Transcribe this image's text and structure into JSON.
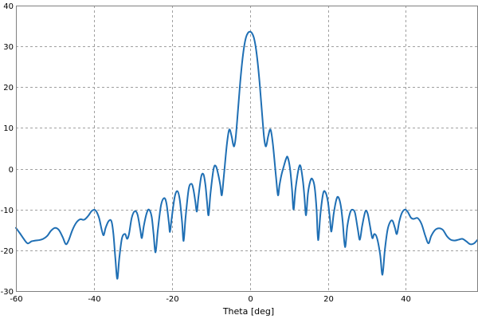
{
  "chart_data": {
    "type": "line",
    "title": "",
    "xlabel": "Theta [deg]",
    "ylabel": "",
    "xlim": [
      -60,
      58.5
    ],
    "ylim": [
      -30,
      40
    ],
    "xticks": [
      -60,
      -40,
      -20,
      0,
      20,
      40
    ],
    "yticks": [
      -30,
      -20,
      -10,
      0,
      10,
      20,
      30,
      40
    ],
    "grid": true,
    "grid_style": "dashed",
    "line_color": "#1f6fb4",
    "series": [
      {
        "name": "",
        "points": [
          [
            -60.0,
            -14.5
          ],
          [
            -59.0,
            -15.8
          ],
          [
            -58.0,
            -17.2
          ],
          [
            -57.0,
            -18.3
          ],
          [
            -56.0,
            -17.8
          ],
          [
            -55.0,
            -17.6
          ],
          [
            -54.0,
            -17.5
          ],
          [
            -53.0,
            -17.2
          ],
          [
            -52.0,
            -16.5
          ],
          [
            -51.0,
            -15.2
          ],
          [
            -50.0,
            -14.5
          ],
          [
            -49.0,
            -15.0
          ],
          [
            -48.0,
            -16.8
          ],
          [
            -47.2,
            -18.5
          ],
          [
            -46.5,
            -17.6
          ],
          [
            -45.5,
            -15.0
          ],
          [
            -44.5,
            -13.2
          ],
          [
            -43.5,
            -12.4
          ],
          [
            -42.5,
            -12.5
          ],
          [
            -41.5,
            -11.6
          ],
          [
            -40.5,
            -10.3
          ],
          [
            -39.6,
            -10.2
          ],
          [
            -38.7,
            -12.0
          ],
          [
            -38.0,
            -15.0
          ],
          [
            -37.5,
            -16.3
          ],
          [
            -37.0,
            -14.5
          ],
          [
            -36.2,
            -12.8
          ],
          [
            -35.5,
            -12.9
          ],
          [
            -35.0,
            -16.0
          ],
          [
            -34.5,
            -22.0
          ],
          [
            -34.0,
            -27.0
          ],
          [
            -33.5,
            -22.0
          ],
          [
            -32.8,
            -17.0
          ],
          [
            -32.0,
            -16.0
          ],
          [
            -31.5,
            -17.2
          ],
          [
            -31.0,
            -16.0
          ],
          [
            -30.3,
            -12.0
          ],
          [
            -29.5,
            -10.4
          ],
          [
            -28.8,
            -11.3
          ],
          [
            -28.1,
            -15.0
          ],
          [
            -27.7,
            -17.0
          ],
          [
            -27.2,
            -14.0
          ],
          [
            -26.5,
            -11.0
          ],
          [
            -25.9,
            -10.0
          ],
          [
            -25.2,
            -11.7
          ],
          [
            -24.7,
            -16.0
          ],
          [
            -24.2,
            -20.5
          ],
          [
            -23.6,
            -15.0
          ],
          [
            -22.8,
            -9.0
          ],
          [
            -22.0,
            -7.2
          ],
          [
            -21.4,
            -8.5
          ],
          [
            -20.8,
            -13.0
          ],
          [
            -20.5,
            -15.5
          ],
          [
            -20.1,
            -12.5
          ],
          [
            -19.3,
            -7.0
          ],
          [
            -18.6,
            -5.5
          ],
          [
            -18.0,
            -7.5
          ],
          [
            -17.4,
            -13.0
          ],
          [
            -17.0,
            -17.7
          ],
          [
            -16.5,
            -12.0
          ],
          [
            -15.7,
            -5.0
          ],
          [
            -15.0,
            -3.7
          ],
          [
            -14.5,
            -5.0
          ],
          [
            -14.0,
            -8.0
          ],
          [
            -13.6,
            -10.5
          ],
          [
            -13.2,
            -7.0
          ],
          [
            -12.5,
            -2.0
          ],
          [
            -11.9,
            -1.4
          ],
          [
            -11.4,
            -4.0
          ],
          [
            -11.0,
            -8.0
          ],
          [
            -10.6,
            -11.4
          ],
          [
            -10.1,
            -6.0
          ],
          [
            -9.3,
            0.0
          ],
          [
            -8.7,
            0.6
          ],
          [
            -8.1,
            -1.5
          ],
          [
            -7.6,
            -4.0
          ],
          [
            -7.2,
            -6.5
          ],
          [
            -6.7,
            -2.0
          ],
          [
            -5.9,
            6.0
          ],
          [
            -5.3,
            9.6
          ],
          [
            -4.7,
            8.0
          ],
          [
            -4.3,
            6.0
          ],
          [
            -4.0,
            5.6
          ],
          [
            -3.6,
            8.0
          ],
          [
            -3.0,
            15.0
          ],
          [
            -2.5,
            21.0
          ],
          [
            -2.0,
            26.0
          ],
          [
            -1.5,
            29.8
          ],
          [
            -1.0,
            32.2
          ],
          [
            -0.5,
            33.3
          ],
          [
            0.0,
            33.6
          ],
          [
            0.5,
            33.3
          ],
          [
            1.0,
            32.2
          ],
          [
            1.5,
            29.8
          ],
          [
            2.0,
            26.0
          ],
          [
            2.5,
            21.0
          ],
          [
            3.0,
            15.0
          ],
          [
            3.6,
            8.0
          ],
          [
            4.0,
            5.6
          ],
          [
            4.3,
            6.0
          ],
          [
            4.7,
            8.0
          ],
          [
            5.3,
            9.6
          ],
          [
            5.9,
            6.0
          ],
          [
            6.7,
            -2.0
          ],
          [
            7.2,
            -6.5
          ],
          [
            7.6,
            -4.0
          ],
          [
            8.1,
            -1.5
          ],
          [
            8.7,
            0.6
          ],
          [
            9.3,
            2.5
          ],
          [
            9.7,
            2.8
          ],
          [
            10.3,
            0.0
          ],
          [
            10.8,
            -5.0
          ],
          [
            11.2,
            -10.0
          ],
          [
            11.7,
            -5.0
          ],
          [
            12.5,
            0.0
          ],
          [
            13.0,
            0.6
          ],
          [
            13.6,
            -3.0
          ],
          [
            14.0,
            -7.0
          ],
          [
            14.4,
            -11.4
          ],
          [
            14.9,
            -6.0
          ],
          [
            15.5,
            -3.0
          ],
          [
            16.0,
            -2.5
          ],
          [
            16.6,
            -4.5
          ],
          [
            17.1,
            -10.0
          ],
          [
            17.5,
            -17.5
          ],
          [
            18.1,
            -11.0
          ],
          [
            18.8,
            -6.0
          ],
          [
            19.4,
            -5.8
          ],
          [
            20.0,
            -8.0
          ],
          [
            20.5,
            -12.0
          ],
          [
            20.9,
            -15.4
          ],
          [
            21.5,
            -11.0
          ],
          [
            22.2,
            -7.5
          ],
          [
            22.7,
            -7.0
          ],
          [
            23.3,
            -9.0
          ],
          [
            23.8,
            -13.0
          ],
          [
            24.4,
            -19.2
          ],
          [
            25.0,
            -14.0
          ],
          [
            25.8,
            -10.5
          ],
          [
            26.5,
            -10.1
          ],
          [
            27.0,
            -11.0
          ],
          [
            27.7,
            -15.0
          ],
          [
            28.2,
            -17.4
          ],
          [
            28.8,
            -14.0
          ],
          [
            29.6,
            -10.5
          ],
          [
            30.2,
            -11.0
          ],
          [
            30.8,
            -14.0
          ],
          [
            31.4,
            -17.0
          ],
          [
            31.9,
            -16.0
          ],
          [
            32.6,
            -17.0
          ],
          [
            33.4,
            -21.0
          ],
          [
            34.0,
            -26.0
          ],
          [
            34.6,
            -20.0
          ],
          [
            35.3,
            -15.0
          ],
          [
            36.0,
            -13.0
          ],
          [
            36.6,
            -12.8
          ],
          [
            37.2,
            -14.5
          ],
          [
            37.7,
            -16.0
          ],
          [
            38.3,
            -13.0
          ],
          [
            39.0,
            -10.8
          ],
          [
            39.8,
            -10.0
          ],
          [
            40.5,
            -10.6
          ],
          [
            41.3,
            -12.0
          ],
          [
            42.0,
            -12.3
          ],
          [
            43.0,
            -12.1
          ],
          [
            44.0,
            -13.5
          ],
          [
            45.0,
            -16.5
          ],
          [
            45.8,
            -18.3
          ],
          [
            46.5,
            -16.5
          ],
          [
            47.5,
            -15.0
          ],
          [
            48.5,
            -14.6
          ],
          [
            49.5,
            -15.0
          ],
          [
            50.5,
            -16.5
          ],
          [
            51.5,
            -17.4
          ],
          [
            52.5,
            -17.6
          ],
          [
            53.5,
            -17.4
          ],
          [
            54.5,
            -17.2
          ],
          [
            55.5,
            -17.8
          ],
          [
            56.5,
            -18.5
          ],
          [
            57.5,
            -18.3
          ],
          [
            58.5,
            -17.3
          ]
        ]
      }
    ]
  }
}
